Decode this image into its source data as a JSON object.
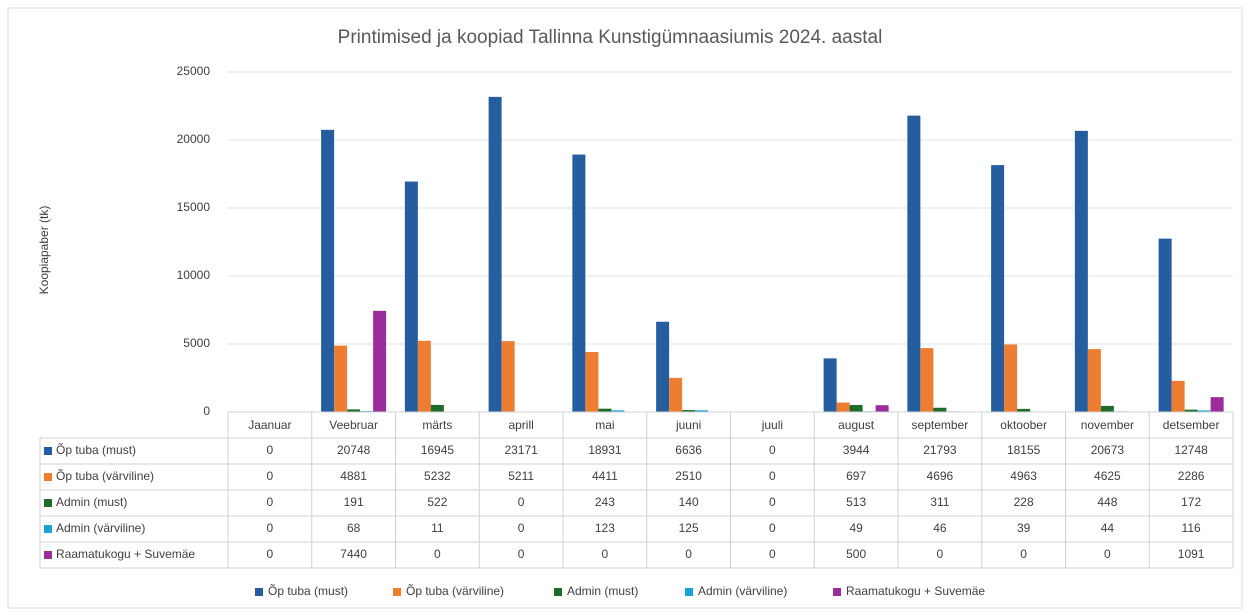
{
  "chart_data": {
    "type": "bar",
    "title": "Printimised ja koopiad Tallinna Kunstigümnaasiumis 2024. aastal",
    "y_label": "Koopiapaber (tk)",
    "categories": [
      "Jaanuar",
      "Veebruar",
      "märts",
      "aprill",
      "mai",
      "juuni",
      "juuli",
      "august",
      "september",
      "oktoober",
      "november",
      "detsember"
    ],
    "series": [
      {
        "name": "Õp tuba (must)",
        "color": "#255e9e",
        "values": [
          0,
          20748,
          16945,
          23171,
          18931,
          6636,
          0,
          3944,
          21793,
          18155,
          20673,
          12748
        ]
      },
      {
        "name": "Õp tuba (värviline)",
        "color": "#ed7d31",
        "values": [
          0,
          4881,
          5232,
          5211,
          4411,
          2510,
          0,
          697,
          4696,
          4963,
          4625,
          2286
        ]
      },
      {
        "name": "Admin (must)",
        "color": "#1e6b2a",
        "values": [
          0,
          191,
          522,
          0,
          243,
          140,
          0,
          513,
          311,
          228,
          448,
          172
        ]
      },
      {
        "name": "Admin (värviline)",
        "color": "#1ea0d8",
        "values": [
          0,
          68,
          11,
          0,
          123,
          125,
          0,
          49,
          46,
          39,
          44,
          116
        ]
      },
      {
        "name": "Raamatukogu + Suvemäe",
        "color": "#9b2d9b",
        "values": [
          0,
          7440,
          0,
          0,
          0,
          0,
          0,
          500,
          0,
          0,
          0,
          1091
        ]
      }
    ],
    "ylim": [
      0,
      25000
    ],
    "yticks": [
      0,
      5000,
      10000,
      15000,
      20000,
      25000
    ],
    "grid": true,
    "legend": "bottom"
  }
}
